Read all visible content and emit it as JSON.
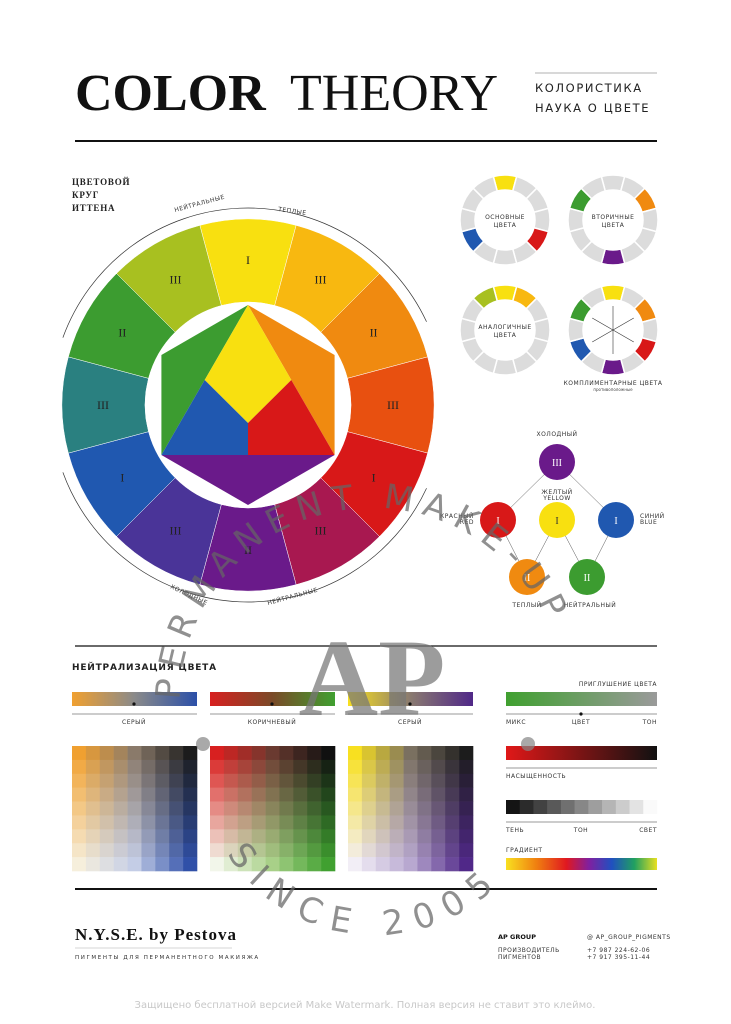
{
  "header": {
    "title_bold": "COLOR",
    "title_light": "THEORY",
    "subtitle": [
      "КОЛОРИСТИКА",
      "НАУКА О ЦВЕТЕ"
    ]
  },
  "wheel": {
    "heading": [
      "ЦВЕТОВОЙ",
      "КРУГ",
      "ИТТЕНА"
    ],
    "arcs": [
      "НЕЙТРАЛЬНЫЕ",
      "ТЕПЛЫЕ",
      "ХОЛОДНЫЕ",
      "НЕЙТРАЛЬНЫЕ"
    ],
    "segments": [
      "I",
      "III",
      "II",
      "III",
      "I",
      "III",
      "II",
      "III",
      "I",
      "III",
      "II",
      "III"
    ]
  },
  "schemes": [
    {
      "label": [
        "ОСНОВНЫЕ",
        "ЦВЕТА"
      ]
    },
    {
      "label": [
        "ВТОРИЧНЫЕ",
        "ЦВЕТА"
      ]
    },
    {
      "label": [
        "АНАЛОГИЧНЫЕ",
        "ЦВЕТА"
      ]
    },
    {
      "label": [
        "КОМПЛИМЕНТАРНЫЕ ЦВЕТА",
        "противоположные"
      ]
    }
  ],
  "triad": {
    "nodes": [
      "III",
      "I",
      "I",
      "I",
      "II",
      "II"
    ],
    "captions": {
      "cold": "ХОЛОДНЫЙ",
      "yellow": [
        "ЖЕЛТЫЙ",
        "YELLOW"
      ],
      "red": [
        "КРАСНЫЙ",
        "RED"
      ],
      "blue": [
        "СИНИЙ",
        "BLUE"
      ],
      "warm": "ТЕПЛЫЙ",
      "neutral": "НЕЙТРАЛЬНЫЙ"
    }
  },
  "neutralization": {
    "heading": "НЕЙТРАЛИЗАЦИЯ ЦВЕТА",
    "bars": [
      "СЕРЫЙ",
      "КОРИЧНЕВЫЙ",
      "СЕРЫЙ"
    ]
  },
  "tones": {
    "muting": "ПРИГЛУШЕНИЕ ЦВЕТА",
    "muting_labels": [
      "МИКС",
      "ЦВЕТ",
      "ТОН"
    ],
    "saturation": "НАСЫЩЕННОСТЬ",
    "shade_labels": [
      "ТЕНЬ",
      "ТОН",
      "СВЕТ"
    ],
    "gradient": "ГРАДИЕНТ"
  },
  "footer": {
    "brand": "N.Y.S.E. by Pestova",
    "tagline": "ПИГМЕНТЫ ДЛЯ ПЕРМАНЕНТНОГО МАКИЯЖА",
    "group": "AP GROUP",
    "maker": [
      "ПРОИЗВОДИТЕЛЬ",
      "ПИГМЕНТОВ"
    ],
    "instagram": "@ AP_GROUP_PIGMENTS",
    "phones": [
      "+7 987 224-62-06",
      "+7 917 395-11-44"
    ]
  },
  "watermark": {
    "ring_top": "PERMANENT MAKE-UP",
    "logo": "AP",
    "ring_bottom": "SINCE 2005",
    "notice": "Защищено бесплатной версией Make Watermark. Полная версия не ставит это клеймо."
  }
}
